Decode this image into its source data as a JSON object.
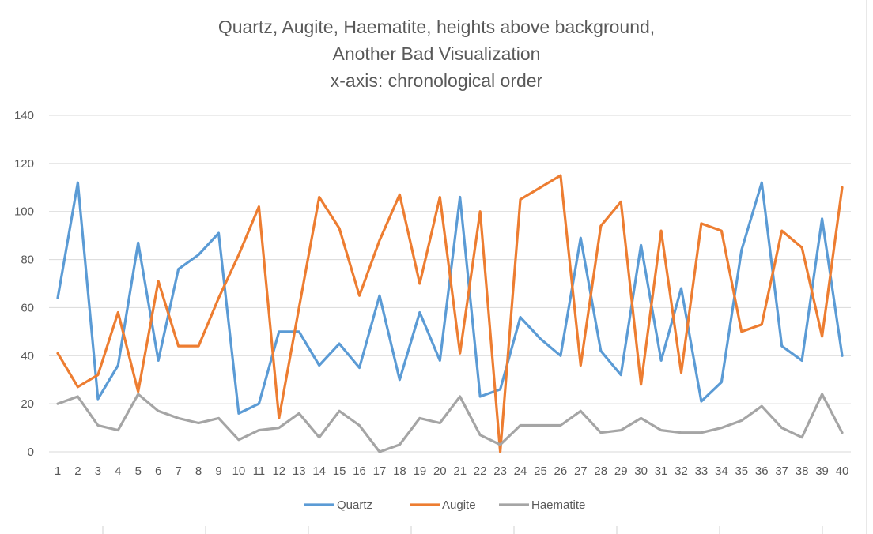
{
  "chart_data": {
    "type": "line",
    "title": [
      "Quartz, Augite, Haematite, heights above background,",
      "Another Bad Visualization",
      "x-axis: chronological order"
    ],
    "xlabel": "",
    "ylabel": "",
    "ylim": [
      0,
      140
    ],
    "yticks": [
      0,
      20,
      40,
      60,
      80,
      100,
      120,
      140
    ],
    "categories": [
      "1",
      "2",
      "3",
      "4",
      "5",
      "6",
      "7",
      "8",
      "9",
      "10",
      "11",
      "12",
      "13",
      "14",
      "15",
      "16",
      "17",
      "18",
      "19",
      "20",
      "21",
      "22",
      "23",
      "24",
      "25",
      "26",
      "27",
      "28",
      "29",
      "30",
      "31",
      "32",
      "33",
      "34",
      "35",
      "36",
      "37",
      "38",
      "39",
      "40"
    ],
    "grid": true,
    "legend_position": "bottom",
    "series": [
      {
        "name": "Quartz",
        "color": "#5b9bd5",
        "values": [
          64,
          112,
          22,
          36,
          87,
          38,
          76,
          82,
          91,
          16,
          20,
          50,
          50,
          36,
          45,
          35,
          65,
          30,
          58,
          38,
          106,
          23,
          26,
          56,
          47,
          40,
          89,
          42,
          32,
          86,
          38,
          68,
          21,
          29,
          84,
          112,
          44,
          38,
          97,
          40
        ]
      },
      {
        "name": "Augite",
        "color": "#ed7d31",
        "values": [
          41,
          27,
          32,
          58,
          25,
          71,
          44,
          44,
          64,
          82,
          102,
          14,
          60,
          106,
          93,
          65,
          88,
          107,
          70,
          106,
          41,
          100,
          0,
          105,
          110,
          115,
          36,
          94,
          104,
          28,
          92,
          33,
          95,
          92,
          50,
          53,
          92,
          85,
          48,
          110
        ]
      },
      {
        "name": "Haematite",
        "color": "#a5a5a5",
        "values": [
          20,
          23,
          11,
          9,
          24,
          17,
          14,
          12,
          14,
          5,
          9,
          10,
          16,
          6,
          17,
          11,
          0,
          3,
          14,
          12,
          23,
          7,
          3,
          11,
          11,
          11,
          17,
          8,
          9,
          14,
          9,
          8,
          8,
          10,
          13,
          19,
          10,
          6,
          24,
          8
        ]
      }
    ]
  }
}
